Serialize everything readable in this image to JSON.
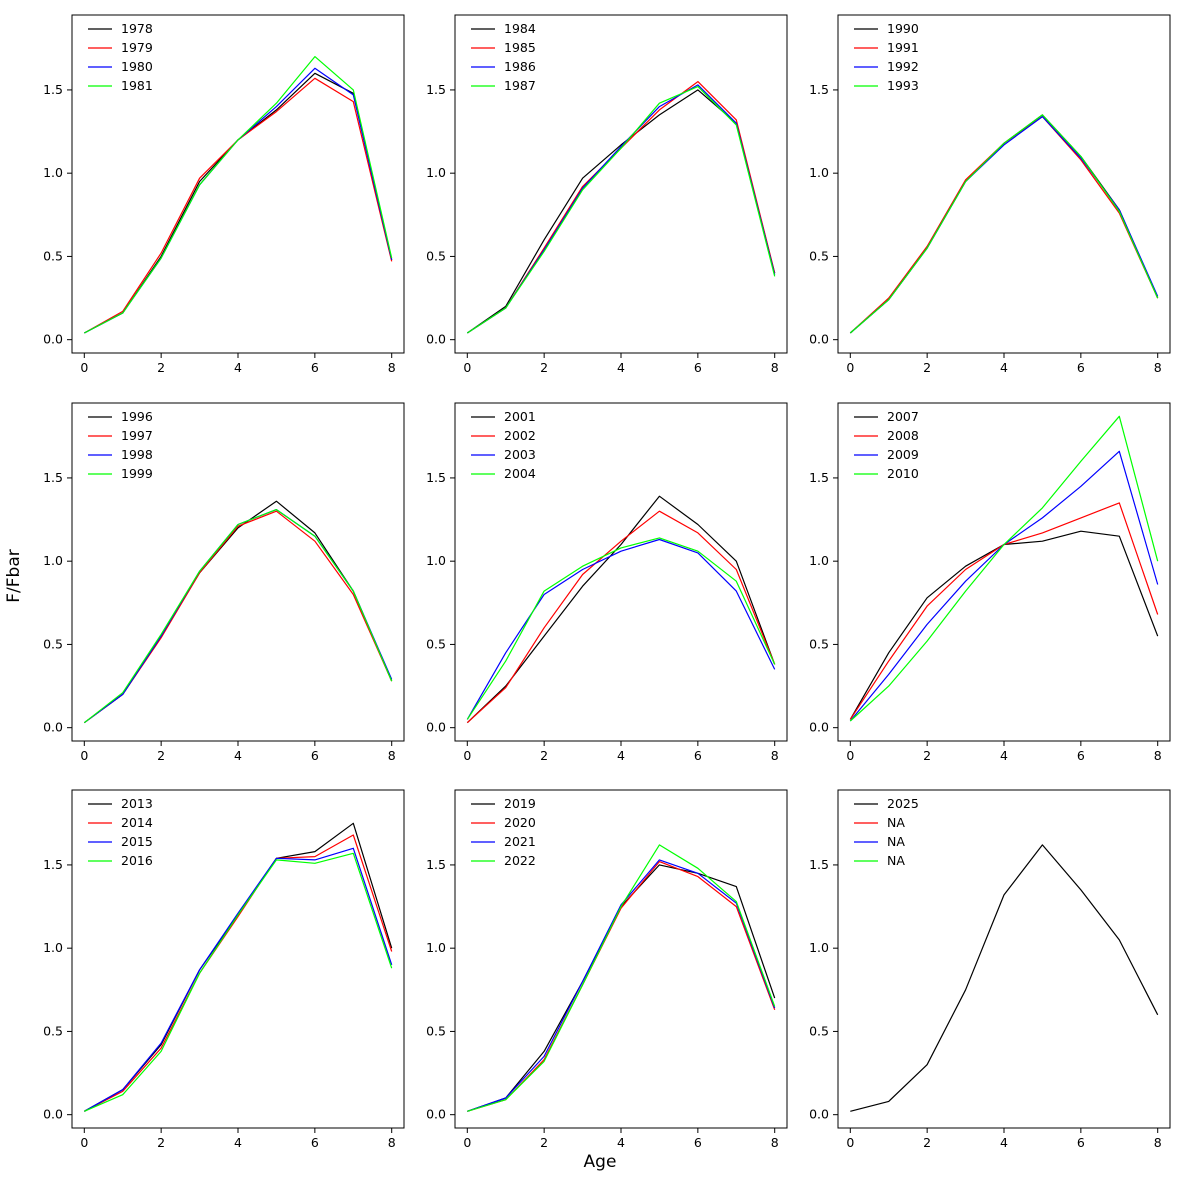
{
  "figure": {
    "xlabel": "Age",
    "ylabel": "F/Fbar",
    "line_colors": [
      "#000000",
      "#ff0000",
      "#0000ff",
      "#00ff00"
    ],
    "x_ticks": [
      "0",
      "2",
      "4",
      "6",
      "8"
    ],
    "y_ticks": [
      "0.0",
      "0.5",
      "1.0",
      "1.5"
    ],
    "xlim": [
      0,
      8
    ],
    "ylim": [
      -0.08,
      1.95
    ],
    "grid": false,
    "legend_position": "top-left"
  },
  "chart_data": [
    {
      "type": "line",
      "x": [
        0,
        1,
        2,
        3,
        4,
        5,
        6,
        7,
        8
      ],
      "series": [
        {
          "name": "1978",
          "color": "#000000",
          "values": [
            0.04,
            0.16,
            0.5,
            0.95,
            1.2,
            1.38,
            1.6,
            1.48,
            0.48
          ]
        },
        {
          "name": "1979",
          "color": "#ff0000",
          "values": [
            0.04,
            0.17,
            0.52,
            0.97,
            1.2,
            1.37,
            1.57,
            1.43,
            0.47
          ]
        },
        {
          "name": "1980",
          "color": "#0000ff",
          "values": [
            0.04,
            0.16,
            0.49,
            0.93,
            1.2,
            1.4,
            1.63,
            1.47,
            0.48
          ]
        },
        {
          "name": "1981",
          "color": "#00ff00",
          "values": [
            0.04,
            0.16,
            0.49,
            0.93,
            1.2,
            1.42,
            1.7,
            1.5,
            0.49
          ]
        }
      ]
    },
    {
      "type": "line",
      "x": [
        0,
        1,
        2,
        3,
        4,
        5,
        6,
        7,
        8
      ],
      "series": [
        {
          "name": "1984",
          "color": "#000000",
          "values": [
            0.04,
            0.2,
            0.6,
            0.97,
            1.17,
            1.35,
            1.5,
            1.3,
            0.4
          ]
        },
        {
          "name": "1985",
          "color": "#ff0000",
          "values": [
            0.04,
            0.19,
            0.55,
            0.92,
            1.15,
            1.38,
            1.55,
            1.32,
            0.4
          ]
        },
        {
          "name": "1986",
          "color": "#0000ff",
          "values": [
            0.04,
            0.19,
            0.54,
            0.91,
            1.16,
            1.4,
            1.53,
            1.3,
            0.39
          ]
        },
        {
          "name": "1987",
          "color": "#00ff00",
          "values": [
            0.04,
            0.19,
            0.53,
            0.9,
            1.15,
            1.42,
            1.52,
            1.29,
            0.38
          ]
        }
      ]
    },
    {
      "type": "line",
      "x": [
        0,
        1,
        2,
        3,
        4,
        5,
        6,
        7,
        8
      ],
      "series": [
        {
          "name": "1990",
          "color": "#000000",
          "values": [
            0.04,
            0.24,
            0.55,
            0.95,
            1.18,
            1.35,
            1.1,
            0.78,
            0.25
          ]
        },
        {
          "name": "1991",
          "color": "#ff0000",
          "values": [
            0.04,
            0.25,
            0.56,
            0.96,
            1.18,
            1.34,
            1.08,
            0.76,
            0.25
          ]
        },
        {
          "name": "1992",
          "color": "#0000ff",
          "values": [
            0.04,
            0.24,
            0.55,
            0.95,
            1.17,
            1.34,
            1.09,
            0.78,
            0.26
          ]
        },
        {
          "name": "1993",
          "color": "#00ff00",
          "values": [
            0.04,
            0.24,
            0.55,
            0.95,
            1.18,
            1.35,
            1.1,
            0.77,
            0.25
          ]
        }
      ]
    },
    {
      "type": "line",
      "x": [
        0,
        1,
        2,
        3,
        4,
        5,
        6,
        7,
        8
      ],
      "series": [
        {
          "name": "1996",
          "color": "#000000",
          "values": [
            0.03,
            0.2,
            0.55,
            0.93,
            1.2,
            1.36,
            1.17,
            0.82,
            0.28
          ]
        },
        {
          "name": "1997",
          "color": "#ff0000",
          "values": [
            0.03,
            0.2,
            0.54,
            0.93,
            1.21,
            1.3,
            1.12,
            0.8,
            0.28
          ]
        },
        {
          "name": "1998",
          "color": "#0000ff",
          "values": [
            0.03,
            0.2,
            0.55,
            0.94,
            1.22,
            1.31,
            1.15,
            0.82,
            0.29
          ]
        },
        {
          "name": "1999",
          "color": "#00ff00",
          "values": [
            0.03,
            0.21,
            0.56,
            0.94,
            1.22,
            1.31,
            1.15,
            0.82,
            0.28
          ]
        }
      ]
    },
    {
      "type": "line",
      "x": [
        0,
        1,
        2,
        3,
        4,
        5,
        6,
        7,
        8
      ],
      "series": [
        {
          "name": "2001",
          "color": "#000000",
          "values": [
            0.03,
            0.25,
            0.55,
            0.85,
            1.1,
            1.39,
            1.22,
            1.0,
            0.38
          ]
        },
        {
          "name": "2002",
          "color": "#ff0000",
          "values": [
            0.03,
            0.24,
            0.6,
            0.92,
            1.12,
            1.3,
            1.17,
            0.95,
            0.38
          ]
        },
        {
          "name": "2003",
          "color": "#0000ff",
          "values": [
            0.05,
            0.45,
            0.8,
            0.95,
            1.06,
            1.13,
            1.05,
            0.82,
            0.35
          ]
        },
        {
          "name": "2004",
          "color": "#00ff00",
          "values": [
            0.05,
            0.4,
            0.82,
            0.97,
            1.08,
            1.14,
            1.06,
            0.88,
            0.38
          ]
        }
      ]
    },
    {
      "type": "line",
      "x": [
        0,
        1,
        2,
        3,
        4,
        5,
        6,
        7,
        8
      ],
      "series": [
        {
          "name": "2007",
          "color": "#000000",
          "values": [
            0.05,
            0.45,
            0.78,
            0.97,
            1.1,
            1.12,
            1.18,
            1.15,
            0.55
          ]
        },
        {
          "name": "2008",
          "color": "#ff0000",
          "values": [
            0.05,
            0.4,
            0.73,
            0.95,
            1.1,
            1.17,
            1.26,
            1.35,
            0.68
          ]
        },
        {
          "name": "2009",
          "color": "#0000ff",
          "values": [
            0.04,
            0.32,
            0.62,
            0.88,
            1.1,
            1.26,
            1.45,
            1.66,
            0.86
          ]
        },
        {
          "name": "2010",
          "color": "#00ff00",
          "values": [
            0.04,
            0.25,
            0.52,
            0.82,
            1.1,
            1.32,
            1.6,
            1.87,
            1.0
          ]
        }
      ]
    },
    {
      "type": "line",
      "x": [
        0,
        1,
        2,
        3,
        4,
        5,
        6,
        7,
        8
      ],
      "series": [
        {
          "name": "2013",
          "color": "#000000",
          "values": [
            0.02,
            0.15,
            0.42,
            0.87,
            1.2,
            1.54,
            1.58,
            1.75,
            1.0
          ]
        },
        {
          "name": "2014",
          "color": "#ff0000",
          "values": [
            0.02,
            0.14,
            0.4,
            0.85,
            1.19,
            1.54,
            1.55,
            1.68,
            0.98
          ]
        },
        {
          "name": "2015",
          "color": "#0000ff",
          "values": [
            0.02,
            0.15,
            0.43,
            0.87,
            1.21,
            1.54,
            1.53,
            1.6,
            0.9
          ]
        },
        {
          "name": "2016",
          "color": "#00ff00",
          "values": [
            0.02,
            0.12,
            0.38,
            0.85,
            1.2,
            1.53,
            1.51,
            1.57,
            0.88
          ]
        }
      ]
    },
    {
      "type": "line",
      "x": [
        0,
        1,
        2,
        3,
        4,
        5,
        6,
        7,
        8
      ],
      "series": [
        {
          "name": "2019",
          "color": "#000000",
          "values": [
            0.02,
            0.1,
            0.38,
            0.8,
            1.25,
            1.5,
            1.45,
            1.37,
            0.7
          ]
        },
        {
          "name": "2020",
          "color": "#ff0000",
          "values": [
            0.02,
            0.09,
            0.33,
            0.78,
            1.24,
            1.52,
            1.43,
            1.25,
            0.63
          ]
        },
        {
          "name": "2021",
          "color": "#0000ff",
          "values": [
            0.02,
            0.1,
            0.35,
            0.8,
            1.26,
            1.53,
            1.45,
            1.27,
            0.64
          ]
        },
        {
          "name": "2022",
          "color": "#00ff00",
          "values": [
            0.02,
            0.09,
            0.32,
            0.78,
            1.25,
            1.62,
            1.48,
            1.28,
            0.65
          ]
        }
      ]
    },
    {
      "type": "line",
      "x": [
        0,
        1,
        2,
        3,
        4,
        5,
        6,
        7,
        8
      ],
      "series": [
        {
          "name": "2025",
          "color": "#000000",
          "values": [
            0.02,
            0.08,
            0.3,
            0.75,
            1.32,
            1.62,
            1.35,
            1.05,
            0.6
          ]
        },
        {
          "name": "NA",
          "color": "#ff0000",
          "values": null
        },
        {
          "name": "NA",
          "color": "#0000ff",
          "values": null
        },
        {
          "name": "NA",
          "color": "#00ff00",
          "values": null
        }
      ]
    }
  ]
}
